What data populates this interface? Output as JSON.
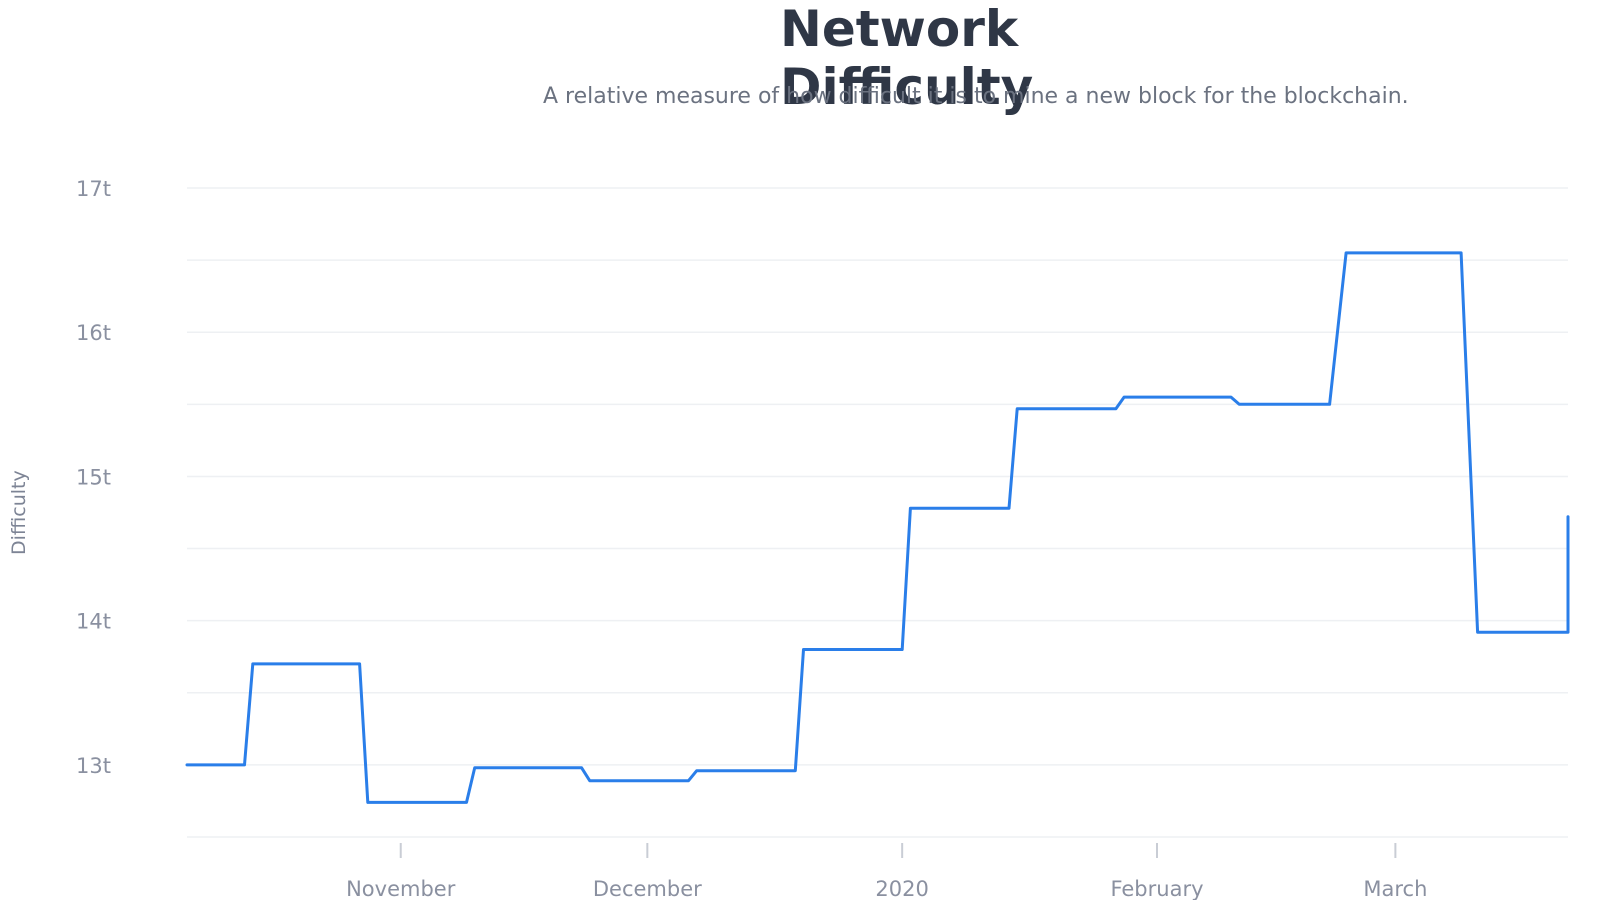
{
  "chart_data": {
    "type": "line",
    "title": "Network Difficulty",
    "subtitle": "A relative measure of how difficult it is to mine a new block for the blockchain.",
    "ylabel": "Difficulty",
    "xlabel": "",
    "ylim": [
      12.5,
      17
    ],
    "yticks": [
      {
        "value": 17,
        "label": "17t"
      },
      {
        "value": 16,
        "label": "16t"
      },
      {
        "value": 15,
        "label": "15t"
      },
      {
        "value": 14,
        "label": "14t"
      },
      {
        "value": 13,
        "label": "13t"
      }
    ],
    "xlim": [
      "2019-10-06",
      "2020-03-22"
    ],
    "xticks": [
      {
        "value": "2019-11-01",
        "label": "November"
      },
      {
        "value": "2019-12-01",
        "label": "December"
      },
      {
        "value": "2020-01-01",
        "label": "2020"
      },
      {
        "value": "2020-02-01",
        "label": "February"
      },
      {
        "value": "2020-03-01",
        "label": "March"
      }
    ],
    "grid": true,
    "line_color": "#2a7ee9",
    "series": [
      {
        "points": [
          [
            "2019-10-06",
            13.0
          ],
          [
            "2019-10-13",
            13.0
          ],
          [
            "2019-10-14",
            13.7
          ],
          [
            "2019-10-27",
            13.7
          ],
          [
            "2019-10-28",
            12.74
          ],
          [
            "2019-11-09",
            12.74
          ],
          [
            "2019-11-10",
            12.98
          ],
          [
            "2019-11-23",
            12.98
          ],
          [
            "2019-11-24",
            12.89
          ],
          [
            "2019-12-06",
            12.89
          ],
          [
            "2019-12-07",
            12.96
          ],
          [
            "2019-12-19",
            12.96
          ],
          [
            "2019-12-20",
            13.8
          ],
          [
            "2020-01-01",
            13.8
          ],
          [
            "2020-01-02",
            14.78
          ],
          [
            "2020-01-14",
            14.78
          ],
          [
            "2020-01-15",
            15.47
          ],
          [
            "2020-01-27",
            15.47
          ],
          [
            "2020-01-28",
            15.55
          ],
          [
            "2020-02-10",
            15.55
          ],
          [
            "2020-02-11",
            15.5
          ],
          [
            "2020-02-22",
            15.5
          ],
          [
            "2020-02-24",
            16.55
          ],
          [
            "2020-03-09",
            16.55
          ],
          [
            "2020-03-11",
            13.92
          ],
          [
            "2020-03-22",
            13.92
          ],
          [
            "2020-03-23",
            14.72
          ],
          [
            "2020-03-25",
            14.72
          ]
        ]
      }
    ]
  }
}
